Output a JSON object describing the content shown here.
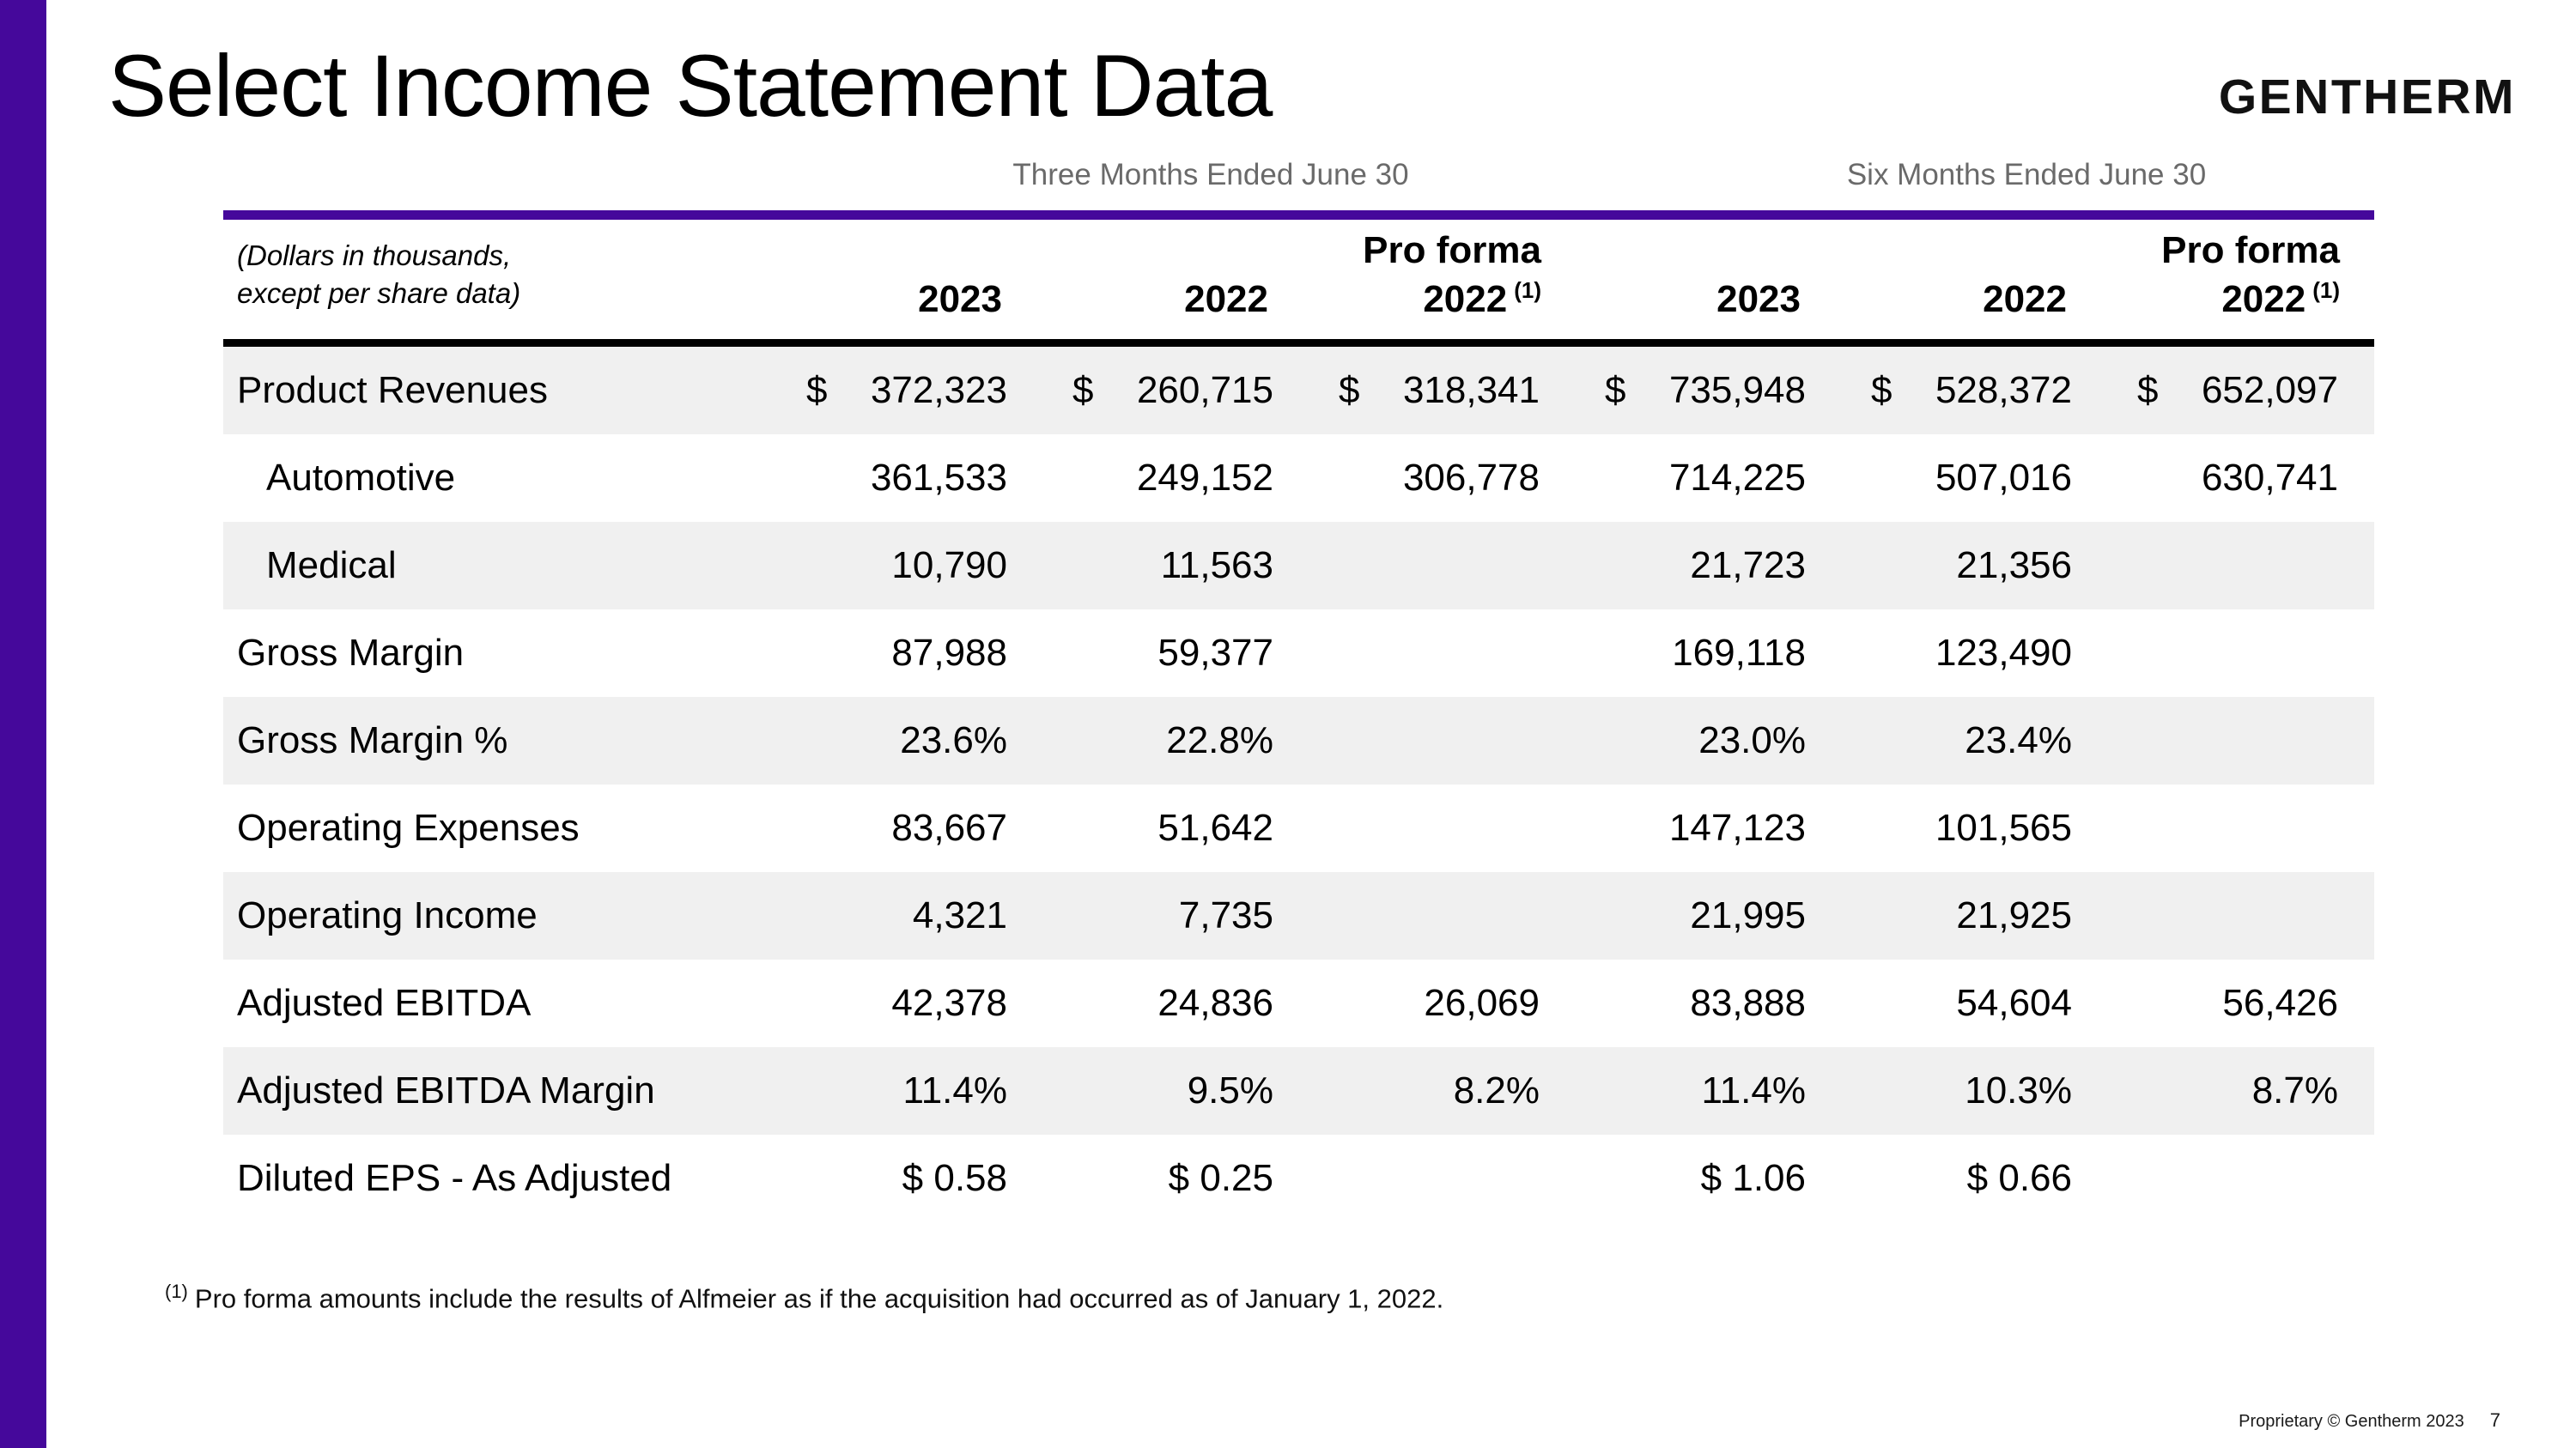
{
  "slide": {
    "title": "Select Income Statement Data",
    "logo": "GENTHERM",
    "footnote_marker": "(1)",
    "footnote_text": "Pro forma amounts include the results of Alfmeier as if the acquisition had occurred as of January 1, 2022.",
    "footer_text": "Proprietary © Gentherm 2023",
    "page_number": "7"
  },
  "colors": {
    "accent_purple": "#45089B",
    "row_shade": "#F0F0F0",
    "group_header_gray": "#6A6A6A"
  },
  "table": {
    "group_headers": [
      "Three Months Ended June 30",
      "Six Months Ended June 30"
    ],
    "units_note": [
      "(Dollars in thousands,",
      "except per share data)"
    ],
    "columns": [
      {
        "pre": "",
        "label": "2023",
        "sup": ""
      },
      {
        "pre": "",
        "label": "2022",
        "sup": ""
      },
      {
        "pre": "Pro forma",
        "label": "2022",
        "sup": "(1)"
      },
      {
        "pre": "",
        "label": "2023",
        "sup": ""
      },
      {
        "pre": "",
        "label": "2022",
        "sup": ""
      },
      {
        "pre": "Pro forma",
        "label": "2022",
        "sup": "(1)"
      }
    ],
    "rows": [
      {
        "label": "Product Revenues",
        "cells": [
          {
            "d": "$",
            "v": "372,323"
          },
          {
            "d": "$",
            "v": "260,715"
          },
          {
            "d": "$",
            "v": "318,341"
          },
          {
            "d": "$",
            "v": "735,948"
          },
          {
            "d": "$",
            "v": "528,372"
          },
          {
            "d": "$",
            "v": "652,097"
          }
        ]
      },
      {
        "label": "Automotive",
        "cells": [
          {
            "v": "361,533"
          },
          {
            "v": "249,152"
          },
          {
            "v": "306,778"
          },
          {
            "v": "714,225"
          },
          {
            "v": "507,016"
          },
          {
            "v": "630,741"
          }
        ]
      },
      {
        "label": "Medical",
        "cells": [
          {
            "v": "10,790"
          },
          {
            "v": "11,563"
          },
          {
            "v": ""
          },
          {
            "v": "21,723"
          },
          {
            "v": "21,356"
          },
          {
            "v": ""
          }
        ]
      },
      {
        "label": "Gross Margin",
        "cells": [
          {
            "v": "87,988"
          },
          {
            "v": "59,377"
          },
          {
            "v": ""
          },
          {
            "v": "169,118"
          },
          {
            "v": "123,490"
          },
          {
            "v": ""
          }
        ]
      },
      {
        "label": "Gross Margin %",
        "cells": [
          {
            "v": "23.6%"
          },
          {
            "v": "22.8%"
          },
          {
            "v": ""
          },
          {
            "v": "23.0%"
          },
          {
            "v": "23.4%"
          },
          {
            "v": ""
          }
        ]
      },
      {
        "label": "Operating Expenses",
        "cells": [
          {
            "v": "83,667"
          },
          {
            "v": "51,642"
          },
          {
            "v": ""
          },
          {
            "v": "147,123"
          },
          {
            "v": "101,565"
          },
          {
            "v": ""
          }
        ]
      },
      {
        "label": "Operating Income",
        "cells": [
          {
            "v": "4,321"
          },
          {
            "v": "7,735"
          },
          {
            "v": ""
          },
          {
            "v": "21,995"
          },
          {
            "v": "21,925"
          },
          {
            "v": ""
          }
        ]
      },
      {
        "label": "Adjusted EBITDA",
        "cells": [
          {
            "v": "42,378"
          },
          {
            "v": "24,836"
          },
          {
            "v": "26,069"
          },
          {
            "v": "83,888"
          },
          {
            "v": "54,604"
          },
          {
            "v": "56,426"
          }
        ]
      },
      {
        "label": "Adjusted EBITDA Margin",
        "cells": [
          {
            "v": "11.4%"
          },
          {
            "v": "9.5%"
          },
          {
            "v": "8.2%"
          },
          {
            "v": "11.4%"
          },
          {
            "v": "10.3%"
          },
          {
            "v": "8.7%"
          }
        ]
      },
      {
        "label": "Diluted EPS - As Adjusted",
        "cells": [
          {
            "v": "$ 0.58"
          },
          {
            "v": "$ 0.25"
          },
          {
            "v": ""
          },
          {
            "v": "$ 1.06"
          },
          {
            "v": "$ 0.66"
          },
          {
            "v": ""
          }
        ]
      }
    ]
  }
}
